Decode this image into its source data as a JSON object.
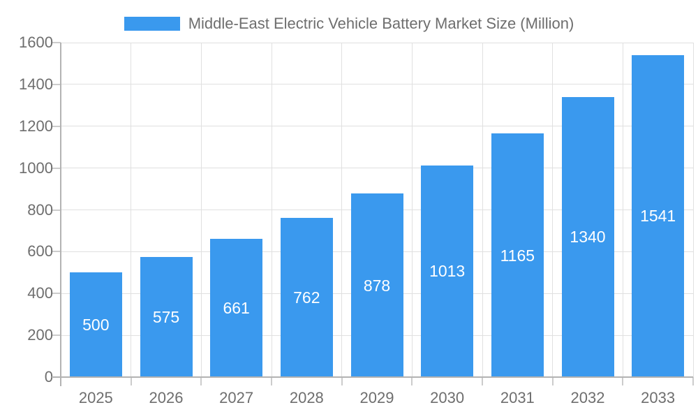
{
  "chart_data": {
    "type": "bar",
    "title": "Middle-East Electric Vehicle Battery Market Size (Million)",
    "series_name": "Middle-East Electric Vehicle Battery Market Size (Million)",
    "categories": [
      "2025",
      "2026",
      "2027",
      "2028",
      "2029",
      "2030",
      "2031",
      "2032",
      "2033"
    ],
    "values": [
      500,
      575,
      661,
      762,
      878,
      1013,
      1165,
      1340,
      1541
    ],
    "xlabel": "",
    "ylabel": "",
    "ylim": [
      0,
      1600
    ],
    "yticks": [
      0,
      200,
      400,
      600,
      800,
      1000,
      1200,
      1400,
      1600
    ],
    "grid": true,
    "legend_position": "top",
    "colors": {
      "bar": "#3A99EE",
      "bar_label": "#ffffff",
      "axis_text": "#6e6e6e",
      "grid": "#e0e0e0",
      "tick": "#cccccc",
      "axis_line": "#b3b3b3",
      "background": "#ffffff"
    }
  }
}
